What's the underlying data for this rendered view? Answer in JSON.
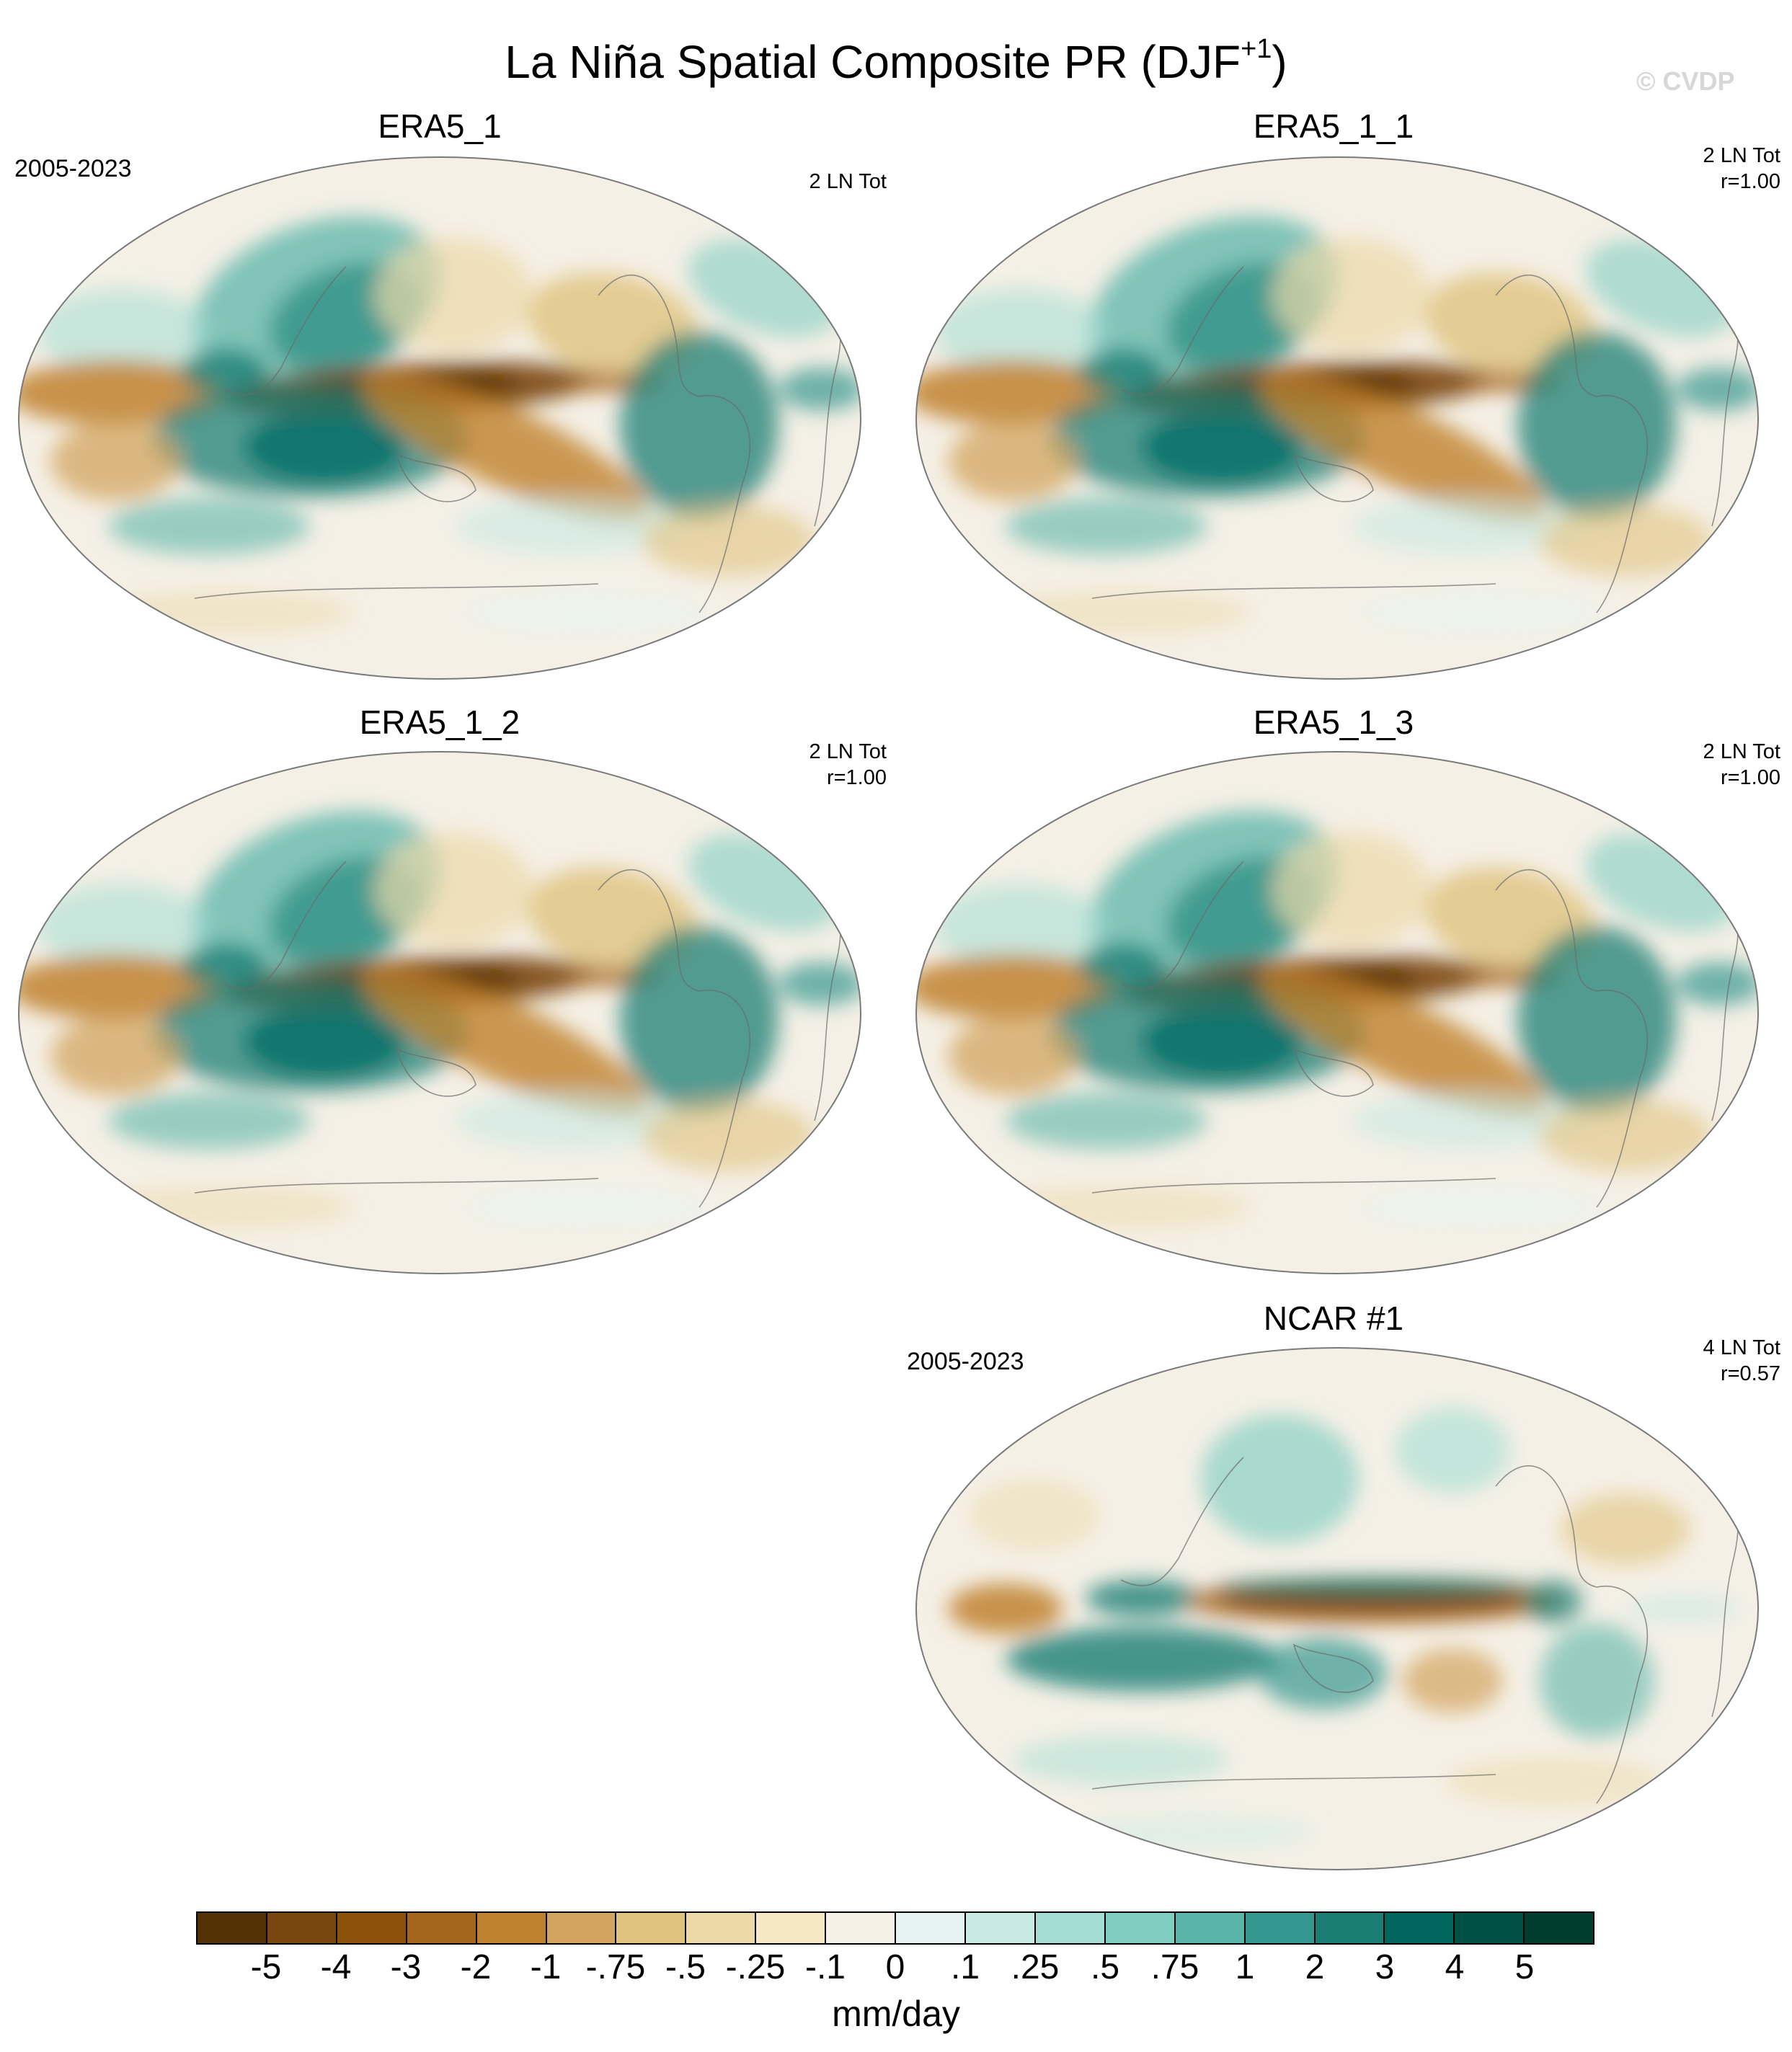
{
  "title": {
    "main": "La Niña Spatial Composite PR (DJF",
    "superscript": "+1",
    "close": ")"
  },
  "watermark": "© CVDP",
  "panels": [
    {
      "id": "p1",
      "title": "ERA5_1",
      "period": "2005-2023",
      "stats_line1": "2 LN Tot",
      "stats_line2": ""
    },
    {
      "id": "p2",
      "title": "ERA5_1_1",
      "period": "",
      "stats_line1": "2 LN Tot",
      "stats_line2": "r=1.00"
    },
    {
      "id": "p3",
      "title": "ERA5_1_2",
      "period": "",
      "stats_line1": "2 LN Tot",
      "stats_line2": "r=1.00"
    },
    {
      "id": "p4",
      "title": "ERA5_1_3",
      "period": "",
      "stats_line1": "2 LN Tot",
      "stats_line2": "r=1.00"
    },
    {
      "id": "p5",
      "title": "NCAR #1",
      "period": "2005-2023",
      "stats_line1": "4 LN Tot",
      "stats_line2": "r=0.57"
    }
  ],
  "colorbar": {
    "colors": [
      "#543005",
      "#7a4610",
      "#8c510a",
      "#a6651c",
      "#bf812d",
      "#d2a45e",
      "#dfc27d",
      "#ecd9a8",
      "#f6e8c3",
      "#f5f0e6",
      "#e6f3f1",
      "#c7eae5",
      "#a3ddd3",
      "#80cdc1",
      "#5ab4a8",
      "#35978f",
      "#1a7e74",
      "#01665e",
      "#005046",
      "#003c30"
    ],
    "labels": [
      "-5",
      "-4",
      "-3",
      "-2",
      "-1",
      "-.75",
      "-.5",
      "-.25",
      "-.1",
      "0",
      ".1",
      ".25",
      ".5",
      ".75",
      "1",
      "2",
      "3",
      "4",
      "5"
    ],
    "units": "mm/day"
  },
  "legend_colors": {
    "dry": "#8c510a",
    "wet": "#01665e",
    "neutral": "#f5f0e6"
  }
}
